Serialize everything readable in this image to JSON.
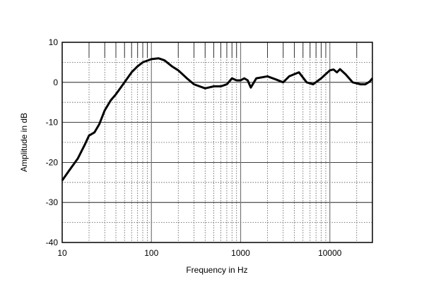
{
  "chart_data": {
    "type": "line",
    "title": "",
    "xlabel": "Frequency in Hz",
    "ylabel": "Amplitude in dB",
    "xscale": "log",
    "xlim": [
      10,
      30000
    ],
    "ylim": [
      -40,
      10
    ],
    "xticks": [
      10,
      100,
      1000,
      10000
    ],
    "xtick_labels": [
      "10",
      "100",
      "1000",
      "10000"
    ],
    "yticks": [
      10,
      0,
      -10,
      -20,
      -30,
      -40
    ],
    "ytick_labels": [
      "10",
      "0",
      "-10",
      "-20",
      "-30",
      "-40"
    ],
    "grid": true,
    "line_color": "#000000",
    "series": [
      {
        "x": [
          10,
          12,
          15,
          18,
          20,
          23,
          26,
          30,
          35,
          40,
          50,
          60,
          70,
          80,
          100,
          120,
          140,
          170,
          200,
          250,
          300,
          400,
          500,
          600,
          700,
          800,
          900,
          1000,
          1100,
          1200,
          1300,
          1500,
          2000,
          2500,
          3000,
          3500,
          4500,
          5500,
          6500,
          8000,
          10000,
          11000,
          12000,
          13000,
          15000,
          18000,
          22000,
          25000,
          28000,
          30000
        ],
        "y": [
          -24.5,
          -22,
          -19,
          -15.5,
          -13.3,
          -12.5,
          -10.5,
          -7,
          -4.5,
          -3,
          0,
          2.5,
          4,
          5,
          5.8,
          6,
          5.5,
          4,
          3,
          1,
          -0.5,
          -1.5,
          -1,
          -1,
          -0.5,
          1,
          0.5,
          0.5,
          1,
          0.5,
          -1.3,
          1,
          1.5,
          0.7,
          0,
          1.5,
          2.5,
          0,
          -0.5,
          1,
          3,
          3.2,
          2.5,
          3.3,
          2,
          0,
          -0.5,
          -0.5,
          0.2,
          1
        ]
      }
    ]
  }
}
